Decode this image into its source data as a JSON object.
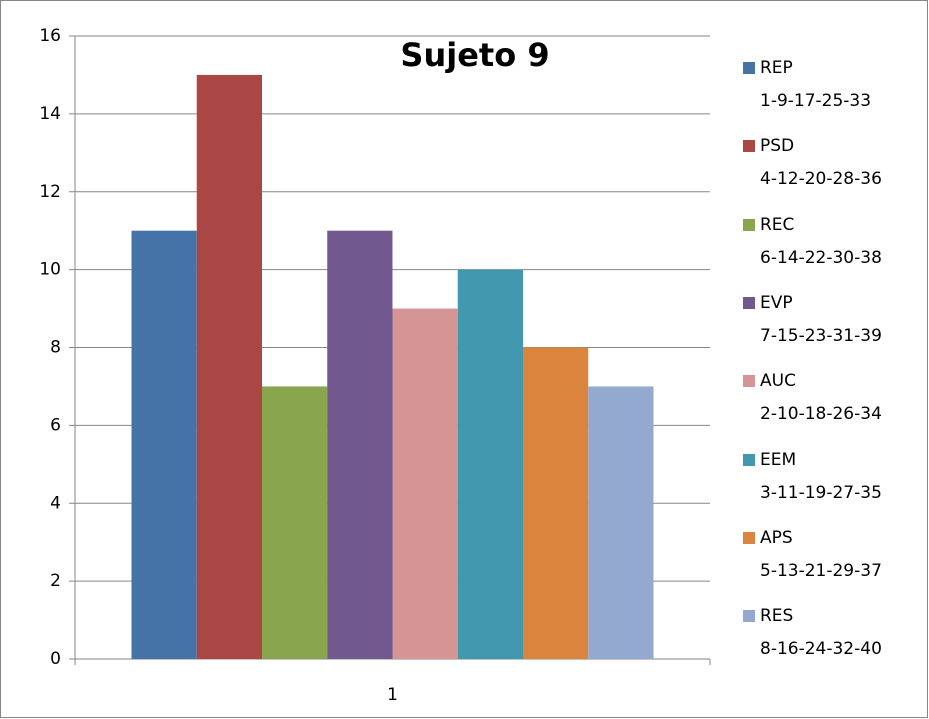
{
  "chart_data": {
    "type": "bar",
    "title": "Sujeto 9",
    "categories": [
      "1"
    ],
    "series": [
      {
        "name": "REP\n1-9-17-25-33",
        "color": "#4572a7",
        "values": [
          11
        ]
      },
      {
        "name": "PSD\n4-12-20-28-36",
        "color": "#aa4643",
        "values": [
          15
        ]
      },
      {
        "name": "REC\n6-14-22-30-38",
        "color": "#89a54e",
        "values": [
          7
        ]
      },
      {
        "name": "EVP\n7-15-23-31-39",
        "color": "#71588f",
        "values": [
          11
        ]
      },
      {
        "name": "AUC\n2-10-18-26-34",
        "color": "#d49594",
        "values": [
          9
        ]
      },
      {
        "name": "EEM\n3-11-19-27-35",
        "color": "#4198af",
        "values": [
          10
        ]
      },
      {
        "name": "APS\n5-13-21-29-37",
        "color": "#db843d",
        "values": [
          8
        ]
      },
      {
        "name": "RES\n8-16-24-32-40",
        "color": "#93a9cf",
        "values": [
          7
        ]
      }
    ],
    "ylim": [
      0,
      16
    ],
    "yticks": [
      0,
      2,
      4,
      6,
      8,
      10,
      12,
      14,
      16
    ],
    "grid": true,
    "legend": "right"
  }
}
